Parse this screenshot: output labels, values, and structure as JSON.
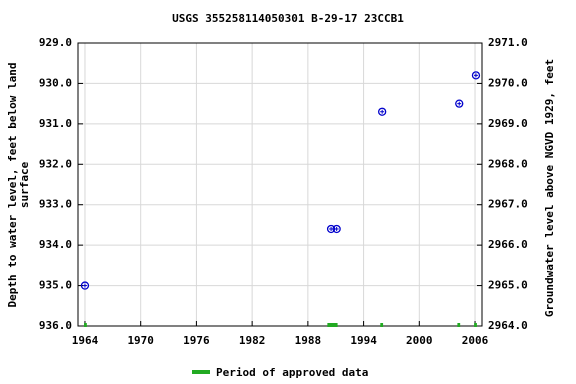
{
  "chart_data": {
    "type": "scatter",
    "title": "USGS 355258114050301 B-29-17 23CCB1",
    "y_label": [
      "Depth to water level, feet below land",
      "surface"
    ],
    "y2_label": "Groundwater level above NGVD 1929, feet",
    "series": [
      {
        "name": "Depth to water level",
        "color": "#0000cc",
        "x": [
          1964.0,
          1990.5,
          1991.1,
          1996.0,
          2004.3,
          2006.1
        ],
        "values": [
          935.0,
          933.6,
          933.6,
          930.7,
          930.5,
          929.8
        ]
      }
    ],
    "approved_periods": {
      "name": "Period of approved data",
      "color": "#22aa22",
      "ranges": [
        [
          1963.9,
          1964.2
        ],
        [
          1990.1,
          1991.2
        ],
        [
          1995.8,
          1996.1
        ],
        [
          2004.1,
          2004.4
        ],
        [
          2005.9,
          2006.2
        ]
      ]
    },
    "xlim": [
      1963.25,
      2006.75
    ],
    "xticks": [
      1964,
      1970,
      1976,
      1982,
      1988,
      1994,
      2000,
      2006
    ],
    "ylim": [
      936,
      929
    ],
    "yticks": [
      {
        "value": 929,
        "label": "929.0"
      },
      {
        "value": 930,
        "label": "930.0"
      },
      {
        "value": 931,
        "label": "931.0"
      },
      {
        "value": 932,
        "label": "932.0"
      },
      {
        "value": 933,
        "label": "933.0"
      },
      {
        "value": 934,
        "label": "934.0"
      },
      {
        "value": 935,
        "label": "935.0"
      },
      {
        "value": 936,
        "label": "936.0"
      }
    ],
    "y2lim": [
      2964,
      2971
    ],
    "y2ticks": [
      {
        "value": 2971,
        "label": "2971.0"
      },
      {
        "value": 2970,
        "label": "2970.0"
      },
      {
        "value": 2969,
        "label": "2969.0"
      },
      {
        "value": 2968,
        "label": "2968.0"
      },
      {
        "value": 2967,
        "label": "2967.0"
      },
      {
        "value": 2966,
        "label": "2966.0"
      },
      {
        "value": 2965,
        "label": "2965.0"
      },
      {
        "value": 2964,
        "label": "2964.0"
      }
    ],
    "grid": true
  }
}
